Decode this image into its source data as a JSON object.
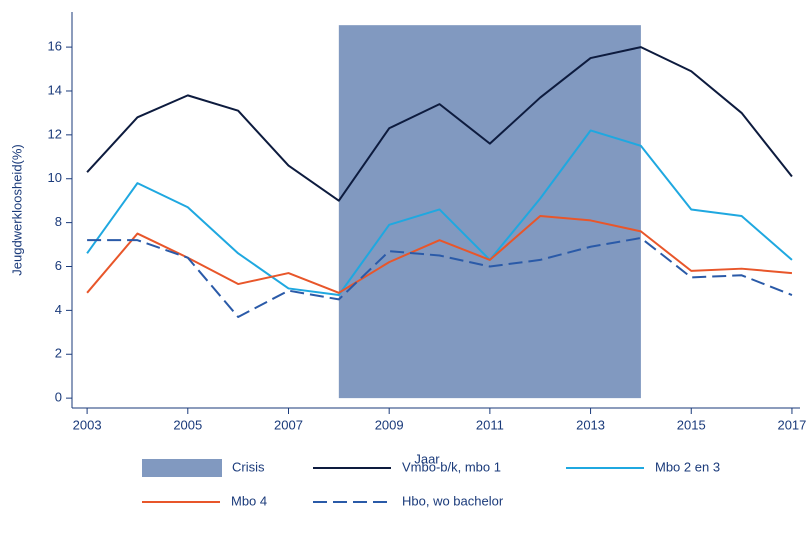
{
  "chart_data": {
    "type": "line",
    "xlabel": "Jaar",
    "ylabel": "Jeugdwerkloosheid(%)",
    "x": [
      2003,
      2004,
      2005,
      2006,
      2007,
      2008,
      2009,
      2010,
      2011,
      2012,
      2013,
      2014,
      2015,
      2016,
      2017
    ],
    "series": [
      {
        "name": "Vmbo-b/k, mbo 1",
        "color": "#0d1b3e",
        "dashed": false,
        "values": [
          10.3,
          12.8,
          13.8,
          13.1,
          10.6,
          9.0,
          12.3,
          13.4,
          11.6,
          13.7,
          15.5,
          16.0,
          14.9,
          13.0,
          10.1
        ]
      },
      {
        "name": "Mbo 2 en 3",
        "color": "#1fa8e0",
        "dashed": false,
        "values": [
          6.6,
          9.8,
          8.7,
          6.6,
          5.0,
          4.7,
          7.9,
          8.6,
          6.3,
          9.1,
          12.2,
          11.5,
          8.6,
          8.3,
          6.3
        ]
      },
      {
        "name": "Mbo 4",
        "color": "#e8562a",
        "dashed": false,
        "values": [
          4.8,
          7.5,
          6.4,
          5.2,
          5.7,
          4.8,
          6.2,
          7.2,
          6.3,
          8.3,
          8.1,
          7.6,
          5.8,
          5.9,
          5.7
        ]
      },
      {
        "name": "Hbo, wo bachelor",
        "color": "#2a5aa8",
        "dashed": true,
        "values": [
          7.2,
          7.2,
          6.4,
          3.7,
          4.9,
          4.5,
          6.7,
          6.5,
          6.0,
          6.3,
          6.9,
          7.3,
          5.5,
          5.6,
          4.7
        ]
      }
    ],
    "band": {
      "name": "Crisis",
      "color": "#8199c0",
      "x": [
        2008,
        2014
      ],
      "y": [
        0,
        17
      ]
    },
    "xlim": [
      2002.7,
      2017.16
    ],
    "xticks": [
      2003,
      2005,
      2007,
      2009,
      2011,
      2013,
      2015,
      2017
    ],
    "ylim": [
      -0.45,
      17.6
    ],
    "yticks": [
      0,
      2,
      4,
      6,
      8,
      10,
      12,
      14,
      16
    ]
  }
}
